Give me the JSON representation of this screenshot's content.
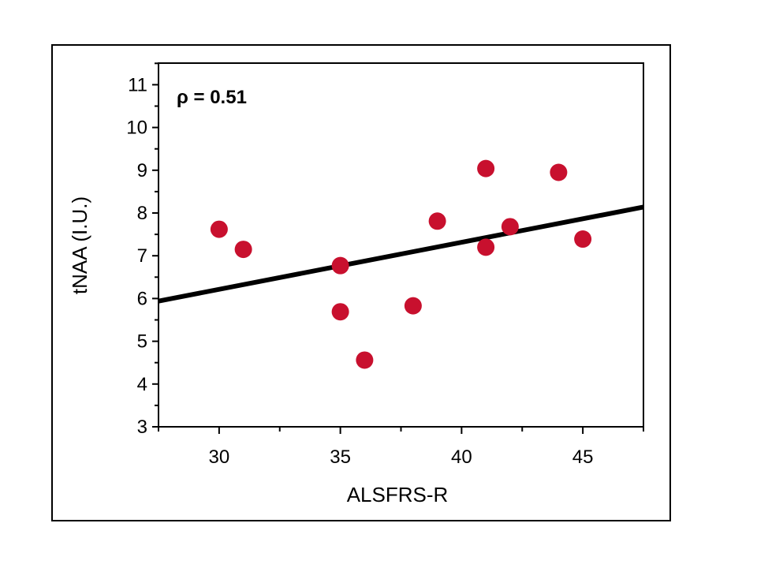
{
  "chart_data": {
    "type": "scatter",
    "xlabel": "ALSFRS-R",
    "ylabel": "tNAA (I.U.)",
    "annotation": "ρ = 0.51",
    "xlim": [
      27.5,
      47.5
    ],
    "ylim": [
      3,
      11.5
    ],
    "x_ticks": [
      30,
      35,
      40,
      45
    ],
    "y_ticks": [
      3,
      4,
      5,
      6,
      7,
      8,
      9,
      10,
      11
    ],
    "points": [
      {
        "x": 30,
        "y": 7.62
      },
      {
        "x": 31,
        "y": 7.15
      },
      {
        "x": 35,
        "y": 6.77
      },
      {
        "x": 35,
        "y": 5.69
      },
      {
        "x": 36,
        "y": 4.56
      },
      {
        "x": 38,
        "y": 5.83
      },
      {
        "x": 39,
        "y": 7.81
      },
      {
        "x": 41,
        "y": 9.04
      },
      {
        "x": 41,
        "y": 7.2
      },
      {
        "x": 42,
        "y": 7.68
      },
      {
        "x": 44,
        "y": 8.95
      },
      {
        "x": 45,
        "y": 7.39
      }
    ],
    "fit_line": {
      "x": [
        27.5,
        47.5
      ],
      "y": [
        5.94,
        8.14
      ]
    },
    "point_color": "#c8102e",
    "line_color": "#000000",
    "grid": false
  }
}
